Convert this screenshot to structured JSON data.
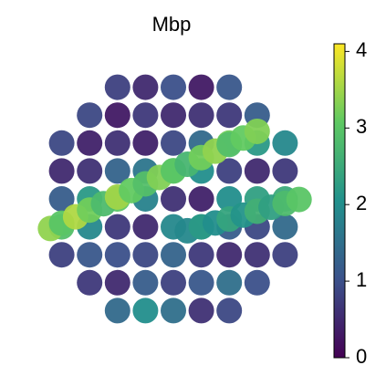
{
  "chart_data": {
    "type": "scatter",
    "title": "Mbp",
    "xlim": [
      0,
      100
    ],
    "ylim": [
      0,
      100
    ],
    "colorscale": [
      "#440154",
      "#3b528b",
      "#21918c",
      "#5ec962",
      "#fde725"
    ],
    "clim": [
      0,
      4.1
    ],
    "cticks": [
      0,
      1,
      2,
      3,
      4
    ],
    "x": [
      10,
      10,
      10,
      10,
      10,
      20,
      20,
      20,
      20,
      20,
      20,
      20,
      30,
      30,
      30,
      30,
      30,
      30,
      30,
      30,
      30,
      40,
      40,
      40,
      40,
      40,
      40,
      40,
      40,
      40,
      50,
      50,
      50,
      50,
      50,
      50,
      50,
      50,
      50,
      60,
      60,
      60,
      60,
      60,
      60,
      60,
      60,
      60,
      70,
      70,
      70,
      70,
      70,
      70,
      70,
      70,
      70,
      80,
      80,
      80,
      80,
      80,
      80,
      80,
      90,
      90,
      90,
      90,
      90,
      6,
      10,
      15,
      20,
      25,
      30,
      35,
      40,
      45,
      50,
      55,
      60,
      65,
      70,
      75,
      80,
      55,
      60,
      65,
      70,
      75,
      80,
      85,
      90,
      95
    ],
    "y": [
      30,
      40,
      50,
      60,
      70,
      20,
      30,
      40,
      50,
      60,
      70,
      80,
      10,
      20,
      30,
      40,
      50,
      60,
      70,
      80,
      90,
      10,
      20,
      30,
      40,
      50,
      60,
      70,
      80,
      90,
      10,
      20,
      30,
      40,
      50,
      60,
      70,
      80,
      90,
      10,
      20,
      30,
      40,
      50,
      60,
      70,
      80,
      90,
      10,
      20,
      30,
      40,
      50,
      60,
      70,
      80,
      90,
      20,
      30,
      40,
      50,
      60,
      70,
      80,
      30,
      40,
      50,
      60,
      70,
      39.4,
      41.3,
      43.6,
      46,
      48.3,
      50.7,
      53,
      55.4,
      57.7,
      60.1,
      62.4,
      64.8,
      67.1,
      69.5,
      71.8,
      74.2,
      38.6,
      40,
      41.4,
      42.8,
      44.2,
      45.6,
      47,
      48.4,
      49.8
    ],
    "values": [
      0.8,
      2.9,
      1.2,
      0.5,
      0.9,
      0.7,
      1.1,
      1.9,
      2.2,
      0.6,
      0.4,
      0.9,
      1.4,
      0.5,
      1.0,
      0.7,
      3.0,
      1.3,
      0.6,
      0.3,
      0.8,
      2.0,
      1.2,
      0.9,
      0.5,
      1.8,
      1.6,
      0.4,
      0.7,
      0.5,
      1.5,
      0.8,
      1.3,
      1.9,
      0.6,
      3.1,
      0.9,
      0.5,
      1.0,
      0.6,
      1.1,
      0.7,
      2.1,
      0.4,
      2.0,
      1.4,
      0.6,
      0.3,
      0.9,
      1.5,
      0.5,
      1.2,
      2.0,
      0.8,
      3.2,
      0.7,
      1.1,
      1.0,
      0.6,
      0.9,
      2.3,
      0.5,
      2.2,
      1.2,
      0.8,
      1.4,
      2.5,
      0.7,
      1.9,
      3.4,
      3.0,
      3.6,
      3.2,
      2.8,
      3.5,
      3.1,
      2.9,
      3.3,
      3.0,
      2.7,
      3.2,
      3.4,
      2.9,
      3.1,
      3.3,
      1.9,
      2.2,
      2.0,
      2.4,
      2.1,
      2.6,
      2.3,
      2.8,
      3.0
    ]
  }
}
